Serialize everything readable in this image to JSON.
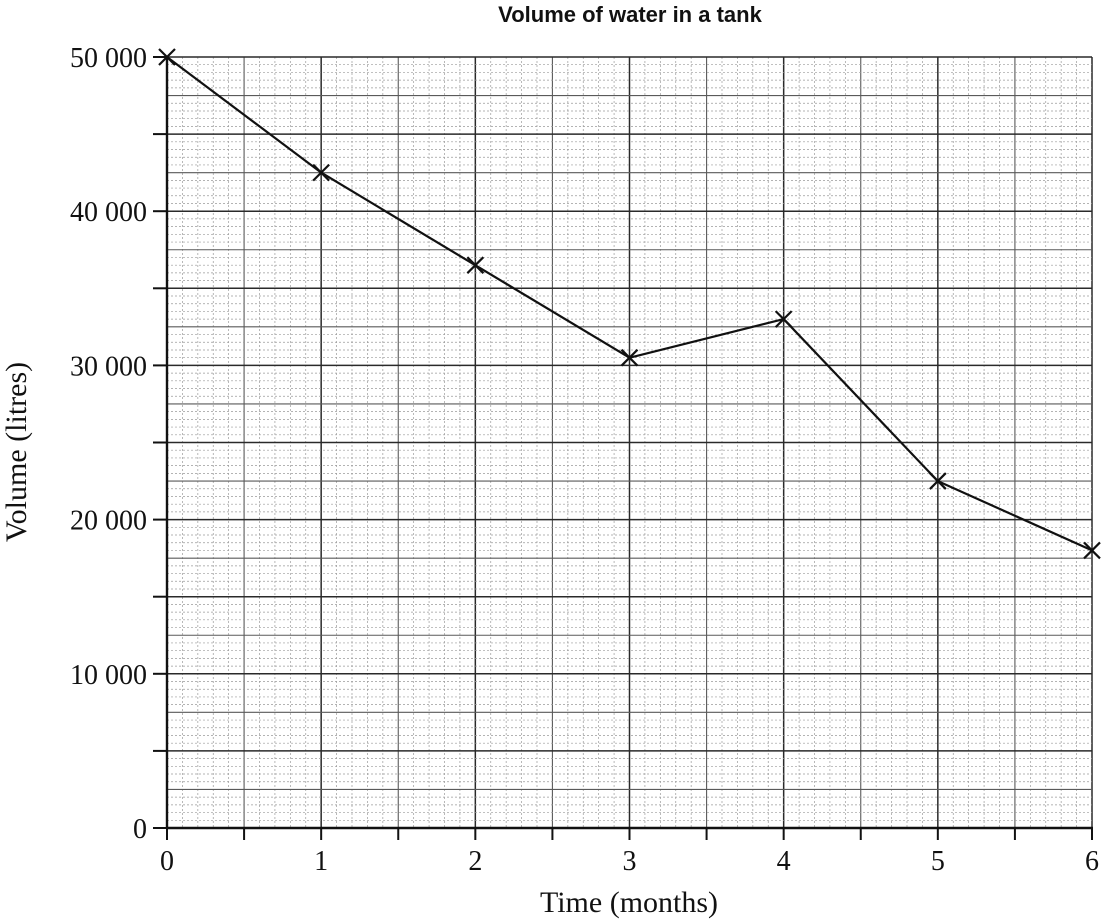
{
  "chart_data": {
    "type": "line",
    "title": "Volume of water in a tank",
    "xlabel": "Time (months)",
    "ylabel": "Volume (litres)",
    "xlim": [
      0,
      6
    ],
    "ylim": [
      0,
      50000
    ],
    "x_ticks": [
      0,
      1,
      2,
      3,
      4,
      5,
      6
    ],
    "x_tick_labels": [
      "0",
      "1",
      "2",
      "3",
      "4",
      "5",
      "6"
    ],
    "y_ticks": [
      0,
      10000,
      20000,
      30000,
      40000,
      50000
    ],
    "y_tick_labels": [
      "0",
      "10 000",
      "20 000",
      "30 000",
      "40 000",
      "50 000"
    ],
    "grid": true,
    "marker": "x",
    "series": [
      {
        "x": [
          0,
          1,
          2,
          3,
          4,
          5,
          6
        ],
        "values": [
          50000,
          42500,
          36500,
          30500,
          33000,
          22500,
          18000
        ]
      }
    ]
  }
}
